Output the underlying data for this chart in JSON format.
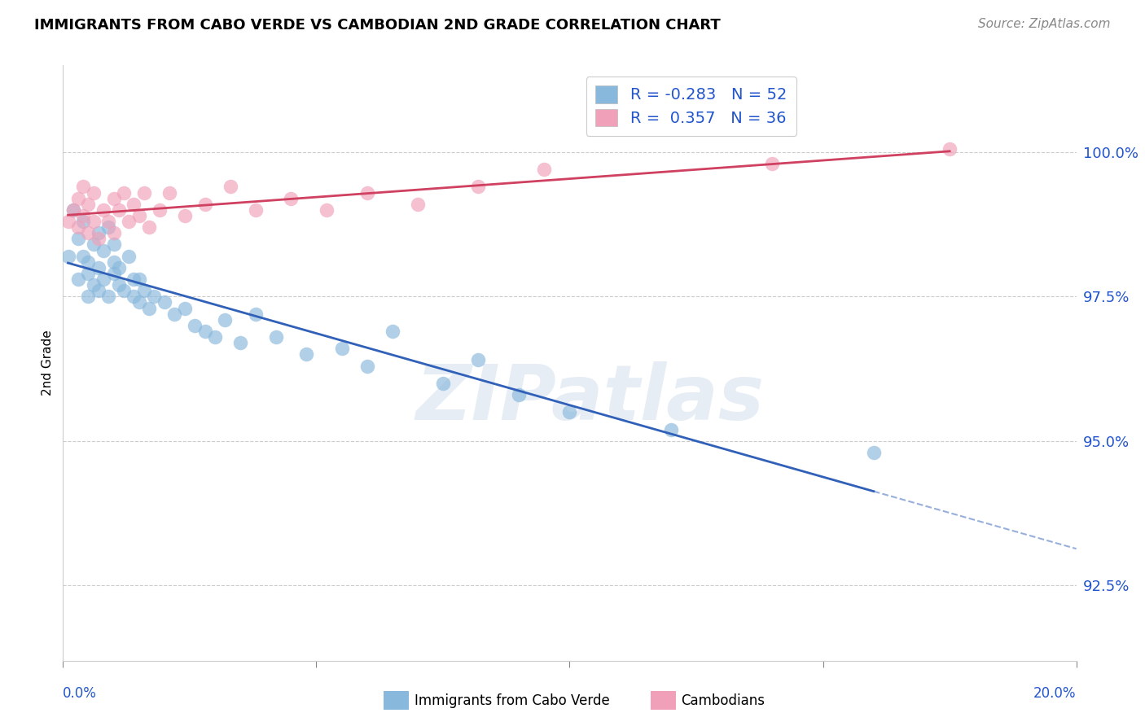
{
  "title": "IMMIGRANTS FROM CABO VERDE VS CAMBODIAN 2ND GRADE CORRELATION CHART",
  "source": "Source: ZipAtlas.com",
  "ylabel": "2nd Grade",
  "y_ticks": [
    92.5,
    95.0,
    97.5,
    100.0
  ],
  "y_tick_labels": [
    "92.5%",
    "95.0%",
    "97.5%",
    "100.0%"
  ],
  "xlim": [
    0.0,
    0.2
  ],
  "ylim": [
    91.2,
    101.5
  ],
  "cabo_verde_color": "#88b8dc",
  "cambodian_color": "#f0a0b8",
  "cabo_verde_line_color": "#3060b8",
  "cambodian_line_color": "#d04060",
  "cabo_verde_R": -0.283,
  "cabo_verde_N": 52,
  "cambodian_R": 0.357,
  "cambodian_N": 36,
  "watermark": "ZIPatlas",
  "cabo_verde_x": [
    0.001,
    0.002,
    0.003,
    0.003,
    0.004,
    0.004,
    0.005,
    0.005,
    0.005,
    0.006,
    0.006,
    0.007,
    0.007,
    0.007,
    0.008,
    0.008,
    0.009,
    0.009,
    0.01,
    0.01,
    0.01,
    0.011,
    0.011,
    0.012,
    0.013,
    0.014,
    0.014,
    0.015,
    0.015,
    0.016,
    0.017,
    0.018,
    0.02,
    0.022,
    0.024,
    0.026,
    0.028,
    0.03,
    0.032,
    0.035,
    0.038,
    0.042,
    0.048,
    0.055,
    0.06,
    0.065,
    0.075,
    0.082,
    0.09,
    0.1,
    0.12,
    0.16
  ],
  "cabo_verde_y": [
    98.2,
    99.0,
    98.5,
    97.8,
    98.8,
    98.2,
    97.5,
    98.1,
    97.9,
    98.4,
    97.7,
    98.6,
    98.0,
    97.6,
    98.3,
    97.8,
    98.7,
    97.5,
    98.1,
    97.9,
    98.4,
    97.7,
    98.0,
    97.6,
    98.2,
    97.8,
    97.5,
    97.4,
    97.8,
    97.6,
    97.3,
    97.5,
    97.4,
    97.2,
    97.3,
    97.0,
    96.9,
    96.8,
    97.1,
    96.7,
    97.2,
    96.8,
    96.5,
    96.6,
    96.3,
    96.9,
    96.0,
    96.4,
    95.8,
    95.5,
    95.2,
    94.8
  ],
  "cambodian_x": [
    0.001,
    0.002,
    0.003,
    0.003,
    0.004,
    0.004,
    0.005,
    0.005,
    0.006,
    0.006,
    0.007,
    0.008,
    0.009,
    0.01,
    0.01,
    0.011,
    0.012,
    0.013,
    0.014,
    0.015,
    0.016,
    0.017,
    0.019,
    0.021,
    0.024,
    0.028,
    0.033,
    0.038,
    0.045,
    0.052,
    0.06,
    0.07,
    0.082,
    0.095,
    0.14,
    0.175
  ],
  "cambodian_y": [
    98.8,
    99.0,
    98.7,
    99.2,
    98.9,
    99.4,
    98.6,
    99.1,
    98.8,
    99.3,
    98.5,
    99.0,
    98.8,
    99.2,
    98.6,
    99.0,
    99.3,
    98.8,
    99.1,
    98.9,
    99.3,
    98.7,
    99.0,
    99.3,
    98.9,
    99.1,
    99.4,
    99.0,
    99.2,
    99.0,
    99.3,
    99.1,
    99.4,
    99.7,
    99.8,
    100.05
  ]
}
